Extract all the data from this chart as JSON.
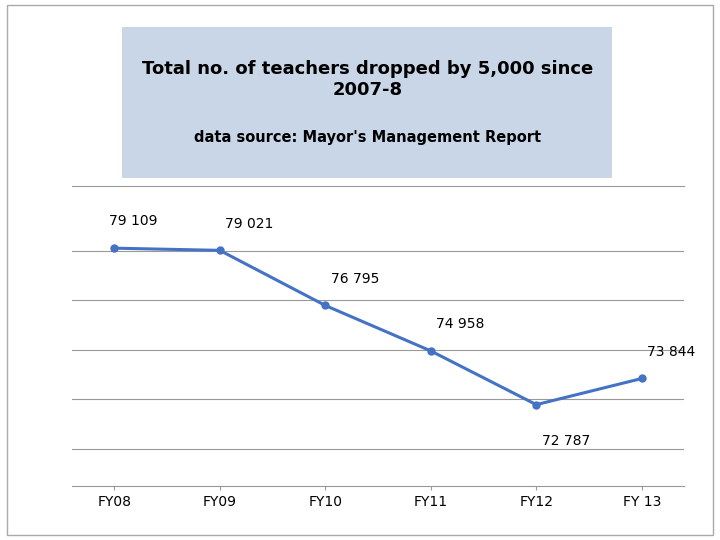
{
  "title": "Total no. of teachers dropped by 5,000 since\n2007-8",
  "subtitle": "data source: Mayor's Management Report",
  "categories": [
    "FY08",
    "FY09",
    "FY10",
    "FY11",
    "FY12",
    "FY 13"
  ],
  "values": [
    79109,
    79021,
    76795,
    74958,
    72787,
    73844
  ],
  "labels": [
    "79 109",
    "79 021",
    "76 795",
    "74 958",
    "72 787",
    "73 844"
  ],
  "line_color": "#4472C4",
  "marker": "o",
  "marker_size": 5,
  "title_box_color": "#C9D6E8",
  "title_fontsize": 13,
  "subtitle_fontsize": 10.5,
  "label_fontsize": 10,
  "tick_fontsize": 10,
  "ylim": [
    69500,
    81500
  ],
  "bg_color": "#FFFFFF",
  "grid_color": "#999999",
  "outer_border_color": "#AAAAAA"
}
